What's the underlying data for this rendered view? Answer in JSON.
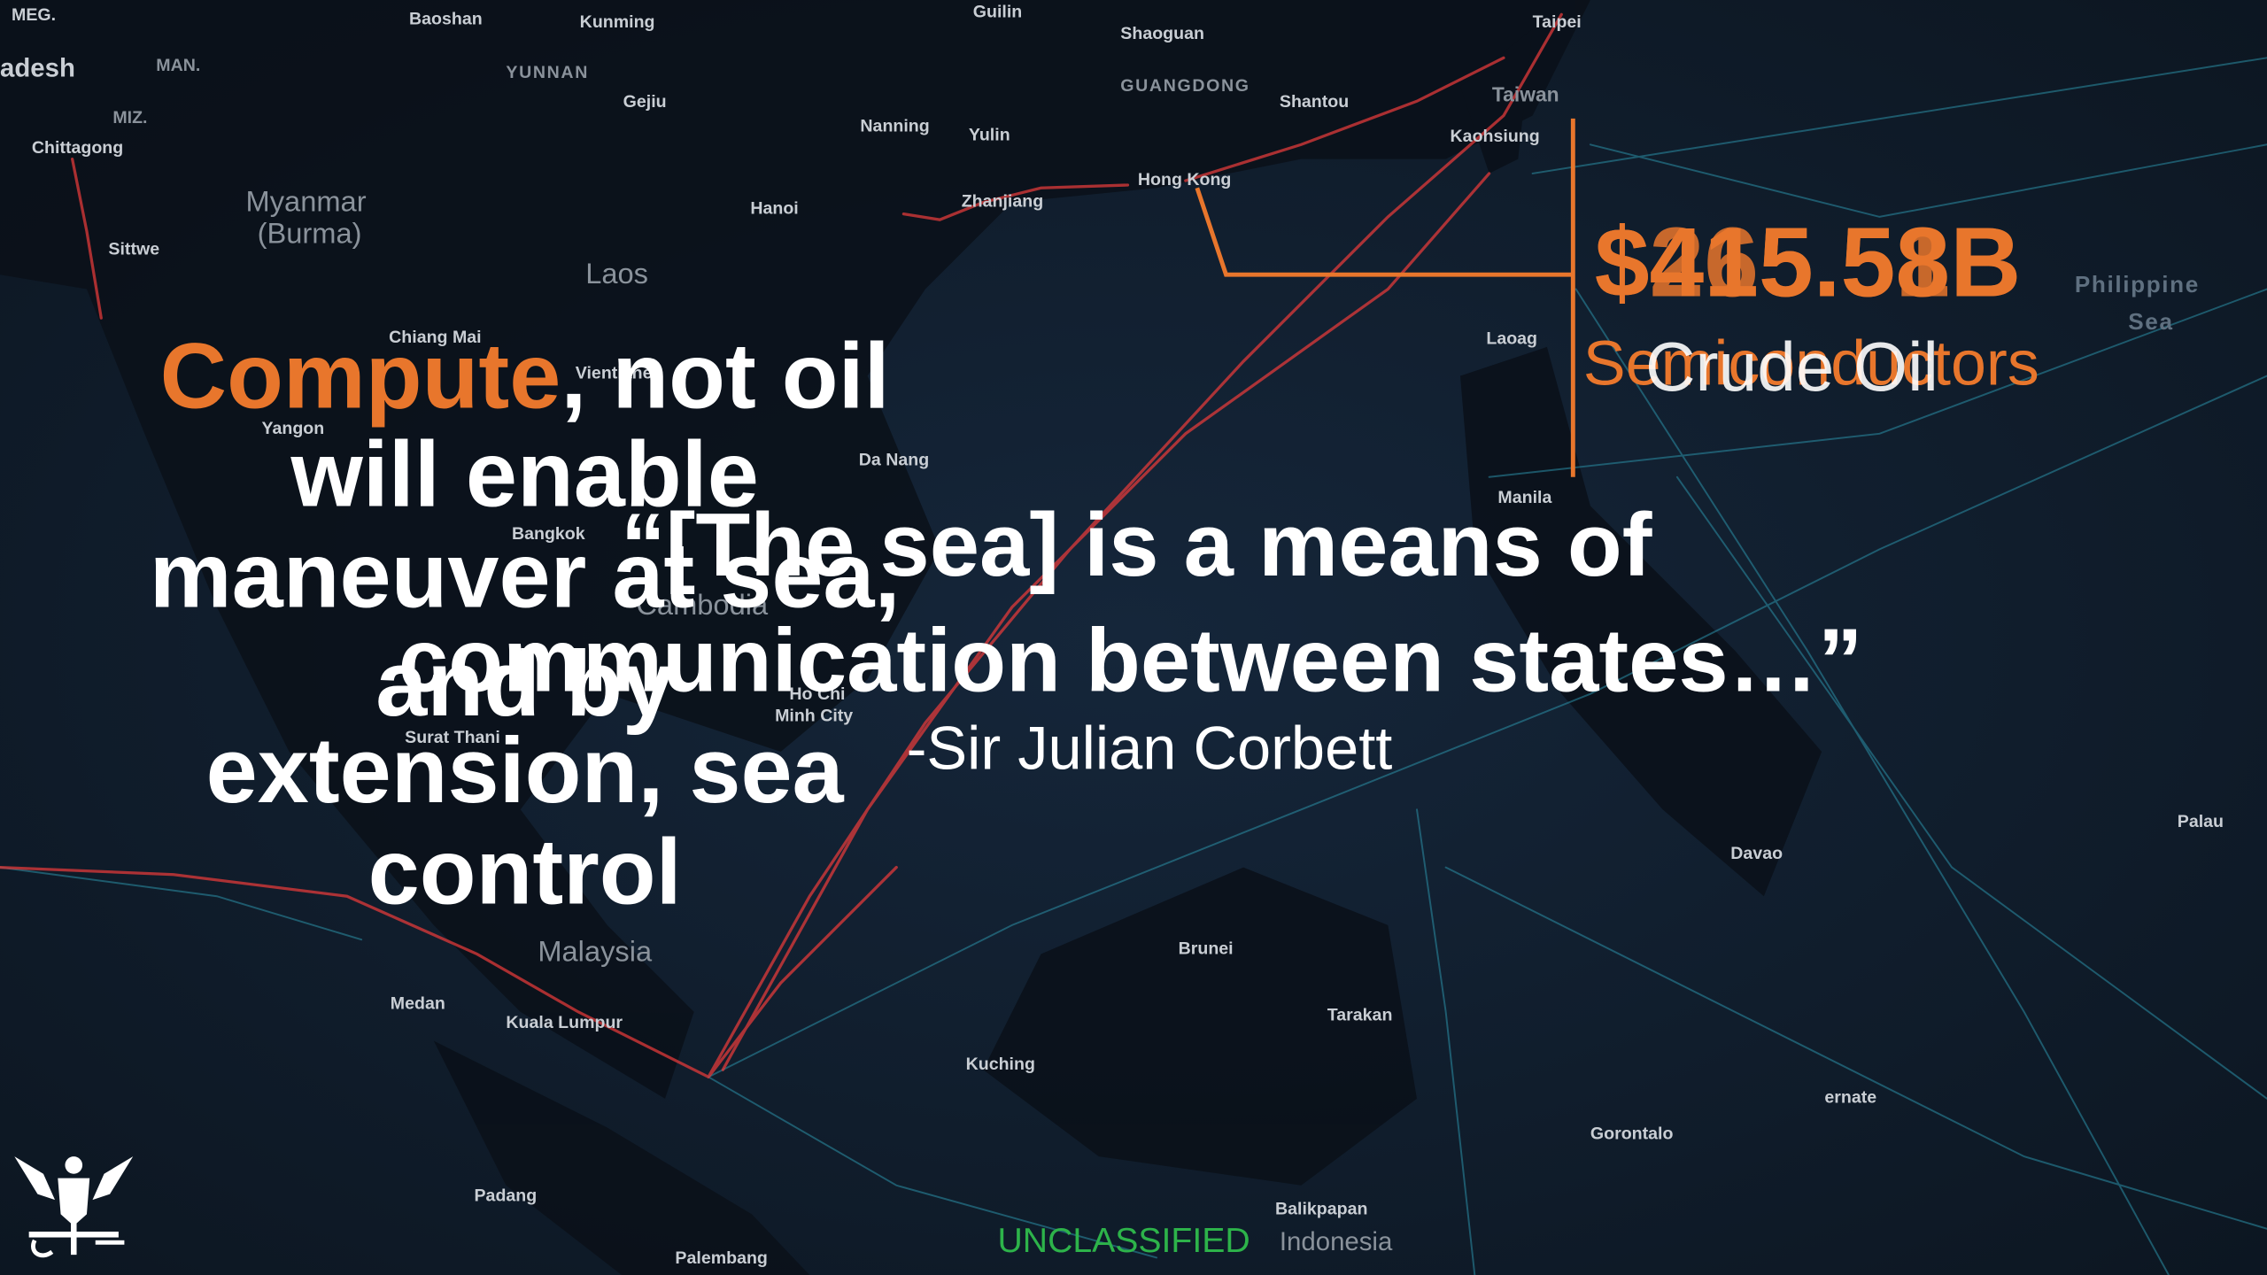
{
  "map": {
    "labels": [
      "MEG.",
      "Baoshan",
      "Kunming",
      "Guilin",
      "Shaoguan",
      "Taipei",
      "adesh",
      "MAN.",
      "YUNNAN",
      "Gejiu",
      "GUANGDONG",
      "Shantou",
      "Taiwan",
      "MIZ.",
      "Chittagong",
      "Nanning",
      "Yulin",
      "Kaohsiung",
      "Myanmar",
      "(Burma)",
      "Hanoi",
      "Zhanjiang",
      "Hong Kong",
      "Sittwe",
      "Laos",
      "Philippine",
      "Sea",
      "Chiang Mai",
      "Vientiane",
      "Laoag",
      "Yangon",
      "Da Nang",
      "Manila",
      "Bangkok",
      "Cambodia",
      "Ho Chi",
      "Minh City",
      "Surat Thani",
      "Palau",
      "Davao",
      "Malaysia",
      "Brunei",
      "Medan",
      "Kuala Lumpur",
      "Tarakan",
      "Kuching",
      "ernate",
      "Gorontalo",
      "Padang",
      "Balikpapan",
      "Indonesia",
      "Palembang"
    ]
  },
  "thesis": {
    "highlight": "Compute",
    "lines": [
      ", not oil",
      "will enable",
      "maneuver at sea,",
      "and by",
      "extension, sea",
      "control"
    ]
  },
  "quote": {
    "lines": [
      "“[The sea] is a means of",
      "communication between states…”"
    ],
    "attribution": "-Sir Julian Corbett"
  },
  "stats": {
    "values": [
      "$265.51B",
      "$415.58B"
    ],
    "labels": [
      "Semiconductors",
      "Crude Oil"
    ]
  },
  "footer": {
    "classification": "UNCLASSIFIED"
  }
}
